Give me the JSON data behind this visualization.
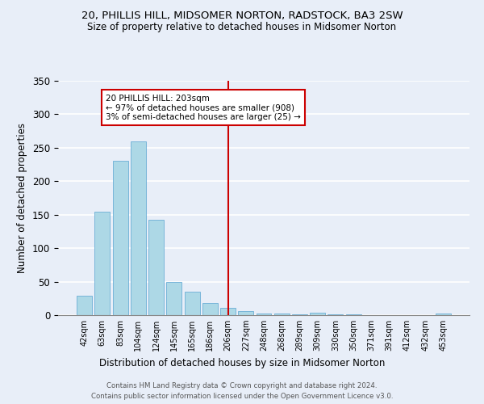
{
  "title": "20, PHILLIS HILL, MIDSOMER NORTON, RADSTOCK, BA3 2SW",
  "subtitle": "Size of property relative to detached houses in Midsomer Norton",
  "xlabel": "Distribution of detached houses by size in Midsomer Norton",
  "ylabel": "Number of detached properties",
  "bar_labels": [
    "42sqm",
    "63sqm",
    "83sqm",
    "104sqm",
    "124sqm",
    "145sqm",
    "165sqm",
    "186sqm",
    "206sqm",
    "227sqm",
    "248sqm",
    "268sqm",
    "289sqm",
    "309sqm",
    "330sqm",
    "350sqm",
    "371sqm",
    "391sqm",
    "412sqm",
    "432sqm",
    "453sqm"
  ],
  "bar_values": [
    29,
    155,
    231,
    260,
    143,
    49,
    35,
    18,
    11,
    6,
    3,
    2,
    1,
    4,
    1,
    1,
    0,
    0,
    0,
    0,
    3
  ],
  "bar_color": "#add8e6",
  "bar_edge_color": "#6baed6",
  "vline_x": 8,
  "vline_color": "#cc0000",
  "annotation_title": "20 PHILLIS HILL: 203sqm",
  "annotation_line1": "← 97% of detached houses are smaller (908)",
  "annotation_line2": "3% of semi-detached houses are larger (25) →",
  "annotation_box_color": "#ffffff",
  "annotation_box_edge": "#cc0000",
  "ylim": [
    0,
    350
  ],
  "yticks": [
    0,
    50,
    100,
    150,
    200,
    250,
    300,
    350
  ],
  "footer1": "Contains HM Land Registry data © Crown copyright and database right 2024.",
  "footer2": "Contains public sector information licensed under the Open Government Licence v3.0.",
  "bg_color": "#e8eef8"
}
